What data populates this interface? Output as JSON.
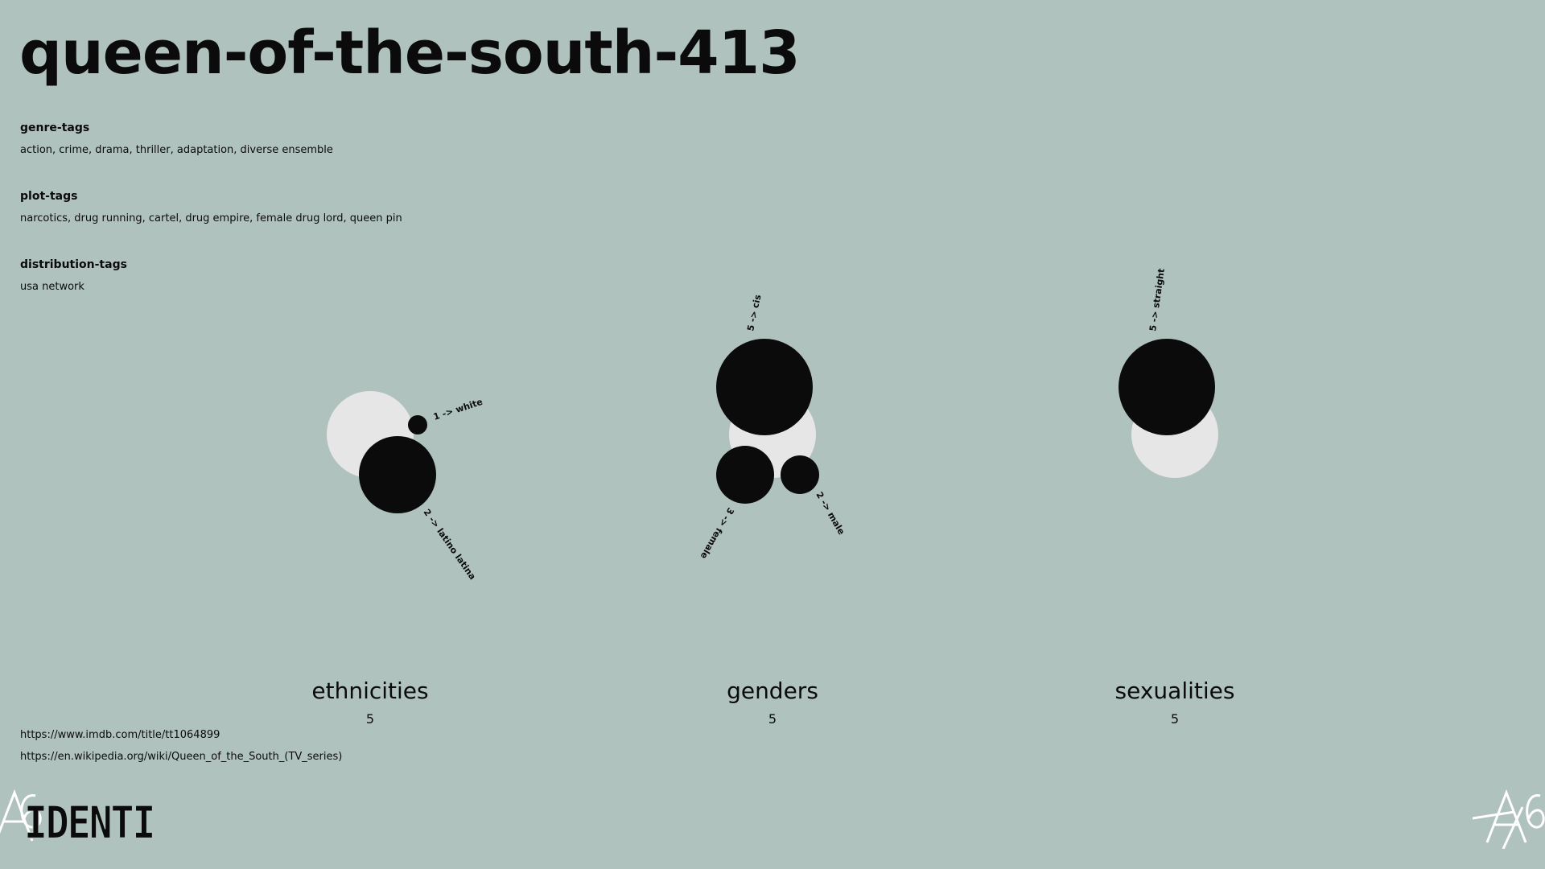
{
  "page": {
    "title": "queen-of-the-south-413"
  },
  "tags": {
    "genre": {
      "heading": "genre-tags",
      "values": "action, crime, drama, thriller, adaptation, diverse ensemble"
    },
    "plot": {
      "heading": "plot-tags",
      "values": "narcotics, drug running, cartel, drug empire, female drug lord, queen pin"
    },
    "distribution": {
      "heading": "distribution-tags",
      "values": "usa network"
    }
  },
  "links": {
    "imdb": "https://www.imdb.com/title/tt1064899",
    "wikipedia": "https://en.wikipedia.org/wiki/Queen_of_the_South_(TV_series)"
  },
  "logo": {
    "text": "IDENTI"
  },
  "colors": {
    "background": "#afc2be",
    "total_circle": "#e6e6e6",
    "category_circle": "#0b0b0b"
  },
  "chart_data": [
    {
      "type": "bubble",
      "title": "ethnicities",
      "total": "5",
      "categories": [
        {
          "label": "1 -> white",
          "value": 1
        },
        {
          "label": "2 -> latino latina",
          "value": 2
        }
      ]
    },
    {
      "type": "bubble",
      "title": "genders",
      "total": "5",
      "categories": [
        {
          "label": "5 -> cis",
          "value": 5
        },
        {
          "label": "3 -> female",
          "value": 3
        },
        {
          "label": "2 -> male",
          "value": 2
        }
      ]
    },
    {
      "type": "bubble",
      "title": "sexualities",
      "total": "5",
      "categories": [
        {
          "label": "5 -> straight",
          "value": 5
        }
      ]
    }
  ]
}
